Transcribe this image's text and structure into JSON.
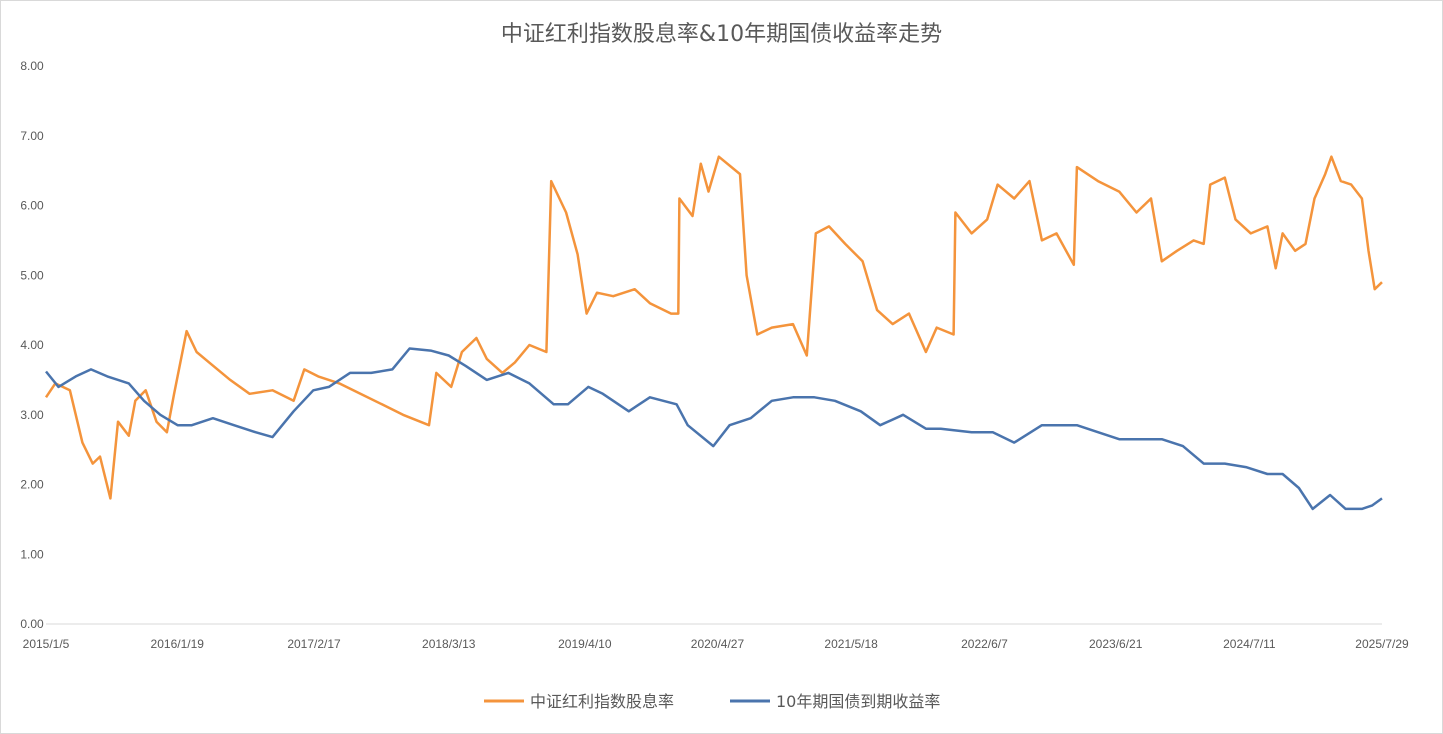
{
  "chart_data": {
    "type": "line",
    "title": "中证红利指数股息率&10年期国债收益率走势",
    "xlabel": "",
    "ylabel": "",
    "ylim": [
      0,
      8
    ],
    "y_ticks": [
      "0.00",
      "1.00",
      "2.00",
      "3.00",
      "4.00",
      "5.00",
      "6.00",
      "7.00",
      "8.00"
    ],
    "x_range": [
      "2015-01-05",
      "2025-07-29"
    ],
    "x_tick_labels": [
      "2015/1/5",
      "2016/1/19",
      "2017/2/17",
      "2018/3/13",
      "2019/4/10",
      "2020/4/27",
      "2021/5/18",
      "2022/6/7",
      "2023/6/21",
      "2024/7/11",
      "2025/7/29"
    ],
    "x_tick_dates": [
      "2015-01-05",
      "2016-01-19",
      "2017-02-17",
      "2018-03-13",
      "2019-04-10",
      "2020-04-27",
      "2021-05-18",
      "2022-06-07",
      "2023-06-21",
      "2024-07-11",
      "2025-07-29"
    ],
    "grid": false,
    "legend_position": "bottom",
    "series": [
      {
        "name": "中证红利指数股息率",
        "color": "#f4943c",
        "points": [
          [
            "2015-01-05",
            3.25
          ],
          [
            "2015-02-01",
            3.45
          ],
          [
            "2015-03-15",
            3.35
          ],
          [
            "2015-04-20",
            2.6
          ],
          [
            "2015-05-20",
            2.3
          ],
          [
            "2015-06-10",
            2.4
          ],
          [
            "2015-07-10",
            1.8
          ],
          [
            "2015-08-01",
            2.9
          ],
          [
            "2015-09-01",
            2.7
          ],
          [
            "2015-09-20",
            3.2
          ],
          [
            "2015-10-20",
            3.35
          ],
          [
            "2015-11-20",
            2.9
          ],
          [
            "2015-12-20",
            2.75
          ],
          [
            "2016-01-10",
            3.3
          ],
          [
            "2016-02-15",
            4.2
          ],
          [
            "2016-03-15",
            3.9
          ],
          [
            "2016-04-20",
            3.75
          ],
          [
            "2016-06-20",
            3.5
          ],
          [
            "2016-08-15",
            3.3
          ],
          [
            "2016-10-20",
            3.35
          ],
          [
            "2016-12-20",
            3.2
          ],
          [
            "2017-01-20",
            3.65
          ],
          [
            "2017-03-01",
            3.55
          ],
          [
            "2017-05-01",
            3.45
          ],
          [
            "2017-07-01",
            3.3
          ],
          [
            "2017-09-01",
            3.15
          ],
          [
            "2017-11-01",
            3.0
          ],
          [
            "2018-01-15",
            2.85
          ],
          [
            "2018-02-05",
            3.6
          ],
          [
            "2018-03-20",
            3.4
          ],
          [
            "2018-04-20",
            3.9
          ],
          [
            "2018-06-01",
            4.1
          ],
          [
            "2018-07-01",
            3.8
          ],
          [
            "2018-08-15",
            3.6
          ],
          [
            "2018-09-20",
            3.75
          ],
          [
            "2018-11-01",
            4.0
          ],
          [
            "2018-12-20",
            3.9
          ],
          [
            "2019-01-03",
            6.35
          ],
          [
            "2019-02-15",
            5.9
          ],
          [
            "2019-03-20",
            5.3
          ],
          [
            "2019-04-15",
            4.45
          ],
          [
            "2019-05-15",
            4.75
          ],
          [
            "2019-07-01",
            4.7
          ],
          [
            "2019-09-01",
            4.8
          ],
          [
            "2019-10-15",
            4.6
          ],
          [
            "2019-12-15",
            4.45
          ],
          [
            "2020-01-05",
            4.45
          ],
          [
            "2020-01-08",
            6.1
          ],
          [
            "2020-02-15",
            5.85
          ],
          [
            "2020-03-10",
            6.6
          ],
          [
            "2020-04-01",
            6.2
          ],
          [
            "2020-05-01",
            6.7
          ],
          [
            "2020-07-01",
            6.45
          ],
          [
            "2020-07-20",
            5.0
          ],
          [
            "2020-08-20",
            4.15
          ],
          [
            "2020-10-01",
            4.25
          ],
          [
            "2020-12-01",
            4.3
          ],
          [
            "2021-01-10",
            3.85
          ],
          [
            "2021-02-05",
            5.6
          ],
          [
            "2021-03-15",
            5.7
          ],
          [
            "2021-05-01",
            5.45
          ],
          [
            "2021-06-20",
            5.2
          ],
          [
            "2021-08-01",
            4.5
          ],
          [
            "2021-09-15",
            4.3
          ],
          [
            "2021-11-01",
            4.45
          ],
          [
            "2021-12-20",
            3.9
          ],
          [
            "2022-01-20",
            4.25
          ],
          [
            "2022-03-10",
            4.15
          ],
          [
            "2022-03-15",
            5.9
          ],
          [
            "2022-05-01",
            5.6
          ],
          [
            "2022-06-15",
            5.8
          ],
          [
            "2022-07-15",
            6.3
          ],
          [
            "2022-09-01",
            6.1
          ],
          [
            "2022-10-15",
            6.35
          ],
          [
            "2022-11-20",
            5.5
          ],
          [
            "2023-01-01",
            5.6
          ],
          [
            "2023-02-20",
            5.15
          ],
          [
            "2023-03-01",
            6.55
          ],
          [
            "2023-05-01",
            6.35
          ],
          [
            "2023-07-01",
            6.2
          ],
          [
            "2023-08-20",
            5.9
          ],
          [
            "2023-10-01",
            6.1
          ],
          [
            "2023-11-01",
            5.2
          ],
          [
            "2023-12-15",
            5.35
          ],
          [
            "2024-02-01",
            5.5
          ],
          [
            "2024-03-01",
            5.45
          ],
          [
            "2024-03-20",
            6.3
          ],
          [
            "2024-05-01",
            6.4
          ],
          [
            "2024-06-01",
            5.8
          ],
          [
            "2024-07-15",
            5.6
          ],
          [
            "2024-09-01",
            5.7
          ],
          [
            "2024-09-25",
            5.1
          ],
          [
            "2024-10-15",
            5.6
          ],
          [
            "2024-11-20",
            5.35
          ],
          [
            "2024-12-20",
            5.45
          ],
          [
            "2025-01-15",
            6.1
          ],
          [
            "2025-02-15",
            6.45
          ],
          [
            "2025-03-05",
            6.7
          ],
          [
            "2025-04-01",
            6.35
          ],
          [
            "2025-05-01",
            6.3
          ],
          [
            "2025-06-01",
            6.1
          ],
          [
            "2025-06-20",
            5.35
          ],
          [
            "2025-07-08",
            4.8
          ],
          [
            "2025-07-29",
            4.9
          ]
        ]
      },
      {
        "name": "10年期国债到期收益率",
        "color": "#4a74ad",
        "points": [
          [
            "2015-01-05",
            3.62
          ],
          [
            "2015-02-10",
            3.4
          ],
          [
            "2015-04-01",
            3.55
          ],
          [
            "2015-05-15",
            3.65
          ],
          [
            "2015-07-01",
            3.55
          ],
          [
            "2015-09-01",
            3.45
          ],
          [
            "2015-10-15",
            3.2
          ],
          [
            "2015-12-01",
            3.0
          ],
          [
            "2016-01-20",
            2.85
          ],
          [
            "2016-03-01",
            2.85
          ],
          [
            "2016-05-01",
            2.95
          ],
          [
            "2016-07-01",
            2.85
          ],
          [
            "2016-09-01",
            2.75
          ],
          [
            "2016-10-20",
            2.68
          ],
          [
            "2016-12-20",
            3.05
          ],
          [
            "2017-02-15",
            3.35
          ],
          [
            "2017-04-01",
            3.4
          ],
          [
            "2017-06-01",
            3.6
          ],
          [
            "2017-08-01",
            3.6
          ],
          [
            "2017-10-01",
            3.65
          ],
          [
            "2017-11-20",
            3.95
          ],
          [
            "2018-01-20",
            3.92
          ],
          [
            "2018-03-13",
            3.85
          ],
          [
            "2018-05-01",
            3.7
          ],
          [
            "2018-07-01",
            3.5
          ],
          [
            "2018-09-01",
            3.6
          ],
          [
            "2018-11-01",
            3.45
          ],
          [
            "2019-01-10",
            3.15
          ],
          [
            "2019-02-20",
            3.15
          ],
          [
            "2019-04-20",
            3.4
          ],
          [
            "2019-06-01",
            3.3
          ],
          [
            "2019-08-15",
            3.05
          ],
          [
            "2019-10-15",
            3.25
          ],
          [
            "2019-12-31",
            3.15
          ],
          [
            "2020-02-01",
            2.85
          ],
          [
            "2020-04-15",
            2.55
          ],
          [
            "2020-06-01",
            2.85
          ],
          [
            "2020-08-01",
            2.95
          ],
          [
            "2020-10-01",
            3.2
          ],
          [
            "2020-12-01",
            3.25
          ],
          [
            "2021-02-01",
            3.25
          ],
          [
            "2021-04-01",
            3.2
          ],
          [
            "2021-06-15",
            3.05
          ],
          [
            "2021-08-10",
            2.85
          ],
          [
            "2021-10-15",
            3.0
          ],
          [
            "2021-12-20",
            2.8
          ],
          [
            "2022-02-01",
            2.8
          ],
          [
            "2022-05-01",
            2.75
          ],
          [
            "2022-07-01",
            2.75
          ],
          [
            "2022-09-01",
            2.6
          ],
          [
            "2022-11-20",
            2.85
          ],
          [
            "2023-01-01",
            2.85
          ],
          [
            "2023-03-01",
            2.85
          ],
          [
            "2023-05-01",
            2.75
          ],
          [
            "2023-07-01",
            2.65
          ],
          [
            "2023-09-01",
            2.65
          ],
          [
            "2023-11-01",
            2.65
          ],
          [
            "2024-01-01",
            2.55
          ],
          [
            "2024-03-01",
            2.3
          ],
          [
            "2024-05-01",
            2.3
          ],
          [
            "2024-07-01",
            2.25
          ],
          [
            "2024-09-01",
            2.15
          ],
          [
            "2024-10-15",
            2.15
          ],
          [
            "2024-12-01",
            1.95
          ],
          [
            "2025-01-10",
            1.65
          ],
          [
            "2025-03-01",
            1.85
          ],
          [
            "2025-04-15",
            1.65
          ],
          [
            "2025-06-01",
            1.65
          ],
          [
            "2025-07-01",
            1.7
          ],
          [
            "2025-07-29",
            1.8
          ]
        ]
      }
    ]
  }
}
